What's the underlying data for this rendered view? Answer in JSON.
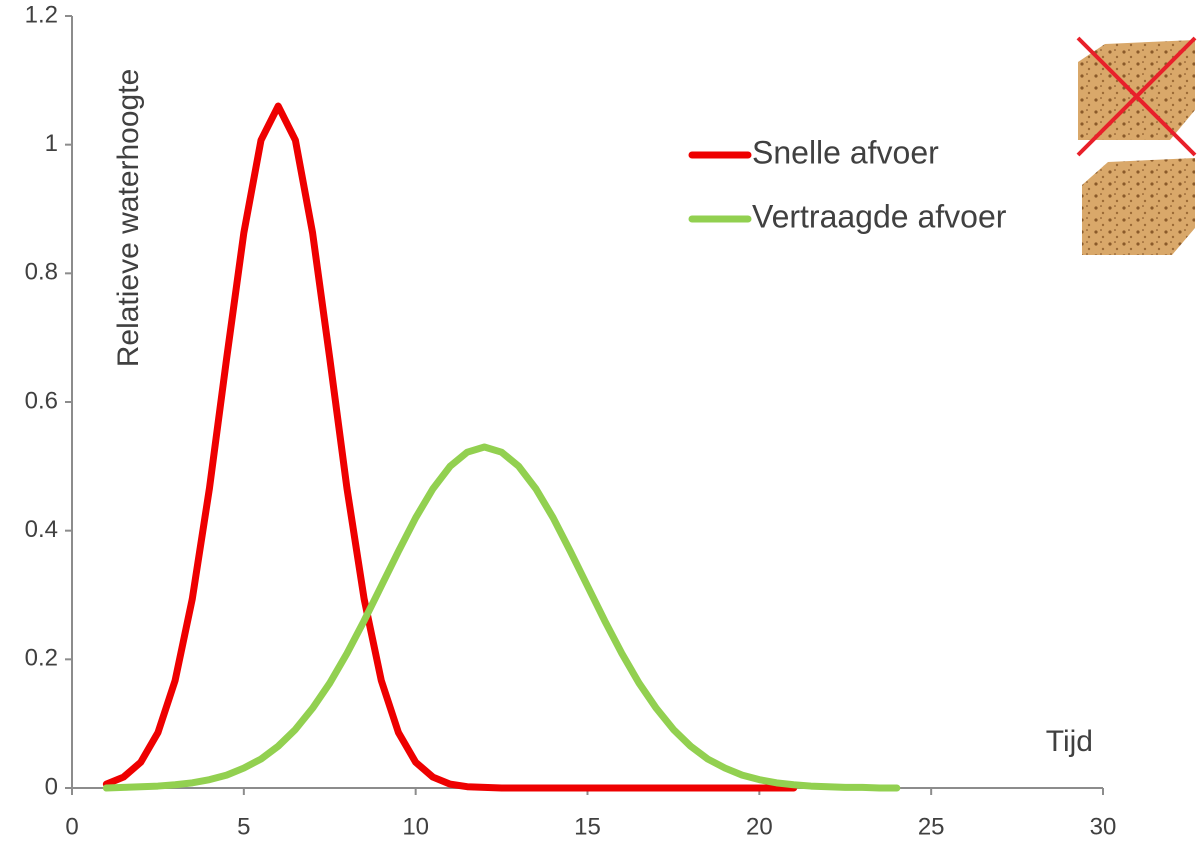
{
  "chart_data": {
    "type": "line",
    "y_label": "Relatieve waterhoogte",
    "x_label": "Tijd",
    "x": [
      1,
      1.5,
      2,
      2.5,
      3,
      3.5,
      4,
      4.5,
      5,
      5.5,
      6,
      6.5,
      7,
      7.5,
      8,
      8.5,
      9,
      9.5,
      10,
      10.5,
      11,
      11.5,
      12,
      12.5,
      13,
      13.5,
      14,
      14.5,
      15,
      15.5,
      16,
      16.5,
      17,
      17.5,
      18,
      18.5,
      19,
      19.5,
      20,
      20.5,
      21,
      21.5,
      22,
      22.5,
      23,
      23.5,
      24
    ],
    "series": [
      {
        "name": "Snelle afvoer",
        "color": "#ee0000",
        "values": [
          0.006,
          0.017,
          0.04,
          0.086,
          0.167,
          0.294,
          0.466,
          0.668,
          0.863,
          1.007,
          1.06,
          1.007,
          0.863,
          0.668,
          0.466,
          0.294,
          0.167,
          0.086,
          0.04,
          0.017,
          0.006,
          0.002,
          0.001,
          0,
          0,
          0,
          0,
          0,
          0,
          0,
          0,
          0,
          0,
          0,
          0,
          0,
          0,
          0,
          0,
          0,
          0,
          null,
          null,
          null,
          null,
          null,
          null
        ]
      },
      {
        "name": "Vertraagde afvoer",
        "color": "#92d050",
        "values": [
          0,
          0.001,
          0.002,
          0.003,
          0.005,
          0.008,
          0.013,
          0.02,
          0.031,
          0.045,
          0.065,
          0.091,
          0.124,
          0.163,
          0.209,
          0.26,
          0.314,
          0.368,
          0.42,
          0.465,
          0.5,
          0.522,
          0.53,
          0.522,
          0.5,
          0.465,
          0.42,
          0.368,
          0.314,
          0.26,
          0.209,
          0.163,
          0.124,
          0.091,
          0.065,
          0.045,
          0.031,
          0.02,
          0.013,
          0.008,
          0.005,
          0.003,
          0.002,
          0.001,
          0.001,
          0,
          0
        ]
      }
    ],
    "xlim": [
      0,
      30
    ],
    "xticks": [
      0,
      5,
      10,
      15,
      20,
      25,
      30
    ],
    "ylim": [
      0,
      1.2
    ],
    "yticks": [
      0,
      0.2,
      0.4,
      0.6,
      0.8,
      1,
      1.2
    ],
    "grid": false
  }
}
